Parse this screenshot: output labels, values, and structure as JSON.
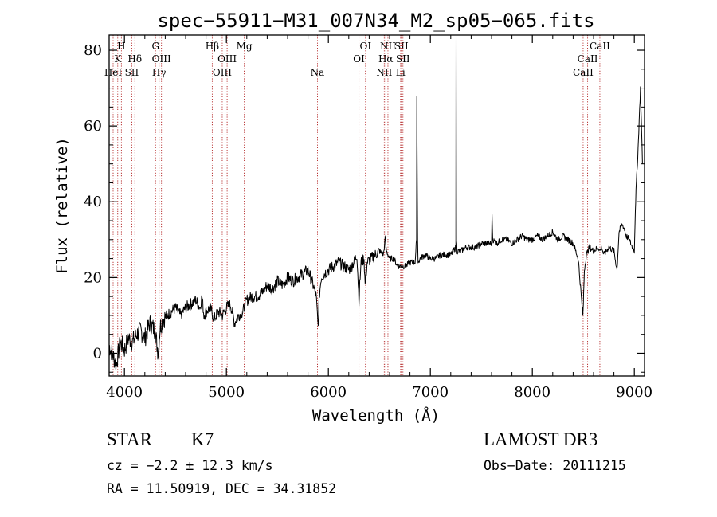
{
  "chart_data": {
    "type": "line",
    "title": "spec−55911−M31_007N34_M2_sp05−065.fits",
    "xlabel": "Wavelength (Å)",
    "ylabel": "Flux (relative)",
    "xlim": [
      3850,
      9100
    ],
    "ylim": [
      -6,
      84
    ],
    "xticks": [
      4000,
      5000,
      6000,
      7000,
      8000,
      9000
    ],
    "yticks": [
      0,
      20,
      40,
      60,
      80
    ],
    "series": [
      {
        "name": "flux",
        "x": [
          3850,
          3880,
          3920,
          3960,
          4000,
          4040,
          4080,
          4120,
          4160,
          4200,
          4250,
          4300,
          4330,
          4350,
          4380,
          4420,
          4460,
          4500,
          4550,
          4600,
          4650,
          4700,
          4740,
          4760,
          4780,
          4800,
          4840,
          4880,
          4920,
          4960,
          5000,
          5040,
          5080,
          5120,
          5160,
          5200,
          5250,
          5300,
          5350,
          5400,
          5450,
          5500,
          5550,
          5600,
          5650,
          5700,
          5750,
          5800,
          5850,
          5880,
          5895,
          5900,
          5910,
          5930,
          5960,
          6000,
          6050,
          6100,
          6150,
          6200,
          6250,
          6280,
          6300,
          6320,
          6350,
          6360,
          6380,
          6420,
          6460,
          6500,
          6540,
          6560,
          6563,
          6570,
          6600,
          6640,
          6680,
          6720,
          6760,
          6800,
          6850,
          6865,
          6867,
          6875,
          6880,
          6900,
          6950,
          7000,
          7050,
          7100,
          7150,
          7200,
          7250,
          7252,
          7256,
          7262,
          7300,
          7350,
          7400,
          7450,
          7500,
          7550,
          7600,
          7605,
          7612,
          7650,
          7700,
          7750,
          7800,
          7850,
          7900,
          7950,
          8000,
          8050,
          8100,
          8150,
          8200,
          8250,
          8300,
          8350,
          8400,
          8450,
          8480,
          8495,
          8500,
          8510,
          8530,
          8545,
          8560,
          8600,
          8650,
          8660,
          8680,
          8700,
          8750,
          8800,
          8830,
          8850,
          8880,
          8900,
          8920,
          8950,
          8980,
          9000,
          9010,
          9020,
          9030,
          9040,
          9060,
          9080
        ],
        "y": [
          2,
          0,
          -3,
          3,
          1,
          4,
          3,
          5,
          6,
          4,
          8,
          6,
          0,
          7,
          9,
          10,
          11,
          12,
          10,
          12,
          13,
          14,
          12,
          15,
          10,
          11,
          12,
          9,
          11,
          10,
          12,
          13,
          8,
          10,
          11,
          14,
          15,
          15,
          16,
          18,
          17,
          19,
          18,
          20,
          19,
          20,
          21,
          22,
          18,
          15,
          9,
          7,
          15,
          20,
          21,
          22,
          23,
          24,
          23,
          22,
          24,
          26,
          14,
          24,
          25,
          18,
          24,
          25,
          26,
          27,
          26,
          31,
          28,
          27,
          25,
          25,
          23,
          23,
          23,
          24,
          24,
          30,
          67,
          30,
          24,
          25,
          26,
          25,
          25,
          26,
          26,
          26,
          28,
          88,
          30,
          27,
          27,
          28,
          28,
          28,
          29,
          29,
          29,
          36,
          30,
          29,
          30,
          30,
          29,
          30,
          31,
          30,
          30,
          31,
          30,
          31,
          32,
          30,
          31,
          30,
          29,
          25,
          15,
          10,
          13,
          22,
          26,
          27,
          28,
          27,
          28,
          27,
          28,
          26,
          28,
          27,
          22,
          32,
          34,
          33,
          31,
          30,
          28,
          27,
          38,
          45,
          50,
          56,
          70,
          50
        ]
      }
    ],
    "lines": [
      {
        "name": "H",
        "wl": 3970,
        "row": 1
      },
      {
        "name": "K",
        "wl": 3934,
        "row": 2
      },
      {
        "name": "HeI",
        "wl": 3889,
        "row": 3
      },
      {
        "name": "SII",
        "wl": 4072,
        "row": 3
      },
      {
        "name": "Hδ",
        "wl": 4102,
        "row": 2
      },
      {
        "name": "G",
        "wl": 4305,
        "row": 1
      },
      {
        "name": "OIII",
        "wl": 4363,
        "row": 2
      },
      {
        "name": "Hγ",
        "wl": 4340,
        "row": 3
      },
      {
        "name": "Hβ",
        "wl": 4861,
        "row": 1
      },
      {
        "name": "OIII",
        "wl": 5007,
        "row": 2
      },
      {
        "name": "OIII",
        "wl": 4959,
        "row": 3
      },
      {
        "name": "Mg",
        "wl": 5175,
        "row": 1
      },
      {
        "name": "Na",
        "wl": 5893,
        "row": 3
      },
      {
        "name": "OI",
        "wl": 6364,
        "row": 1
      },
      {
        "name": "OI",
        "wl": 6300,
        "row": 2
      },
      {
        "name": "NII",
        "wl": 6584,
        "row": 1
      },
      {
        "name": "SII",
        "wl": 6716,
        "row": 1
      },
      {
        "name": "Hα",
        "wl": 6563,
        "row": 2
      },
      {
        "name": "SII",
        "wl": 6731,
        "row": 2
      },
      {
        "name": "NII",
        "wl": 6548,
        "row": 3
      },
      {
        "name": "Li",
        "wl": 6708,
        "row": 3
      },
      {
        "name": "CaII",
        "wl": 8662,
        "row": 1
      },
      {
        "name": "CaII",
        "wl": 8542,
        "row": 2
      },
      {
        "name": "CaII",
        "wl": 8498,
        "row": 3
      }
    ],
    "colors": {
      "spectrum": "#000000",
      "lines": "#b22222",
      "axes": "#000000"
    }
  },
  "info": {
    "class": "STAR",
    "subclass": "K7",
    "survey": "LAMOST DR3",
    "cz": "cz = −2.2 ± 12.3 km/s",
    "obsdate": "Obs−Date: 20111215",
    "radec": "RA =  11.50919, DEC =  34.31852"
  }
}
